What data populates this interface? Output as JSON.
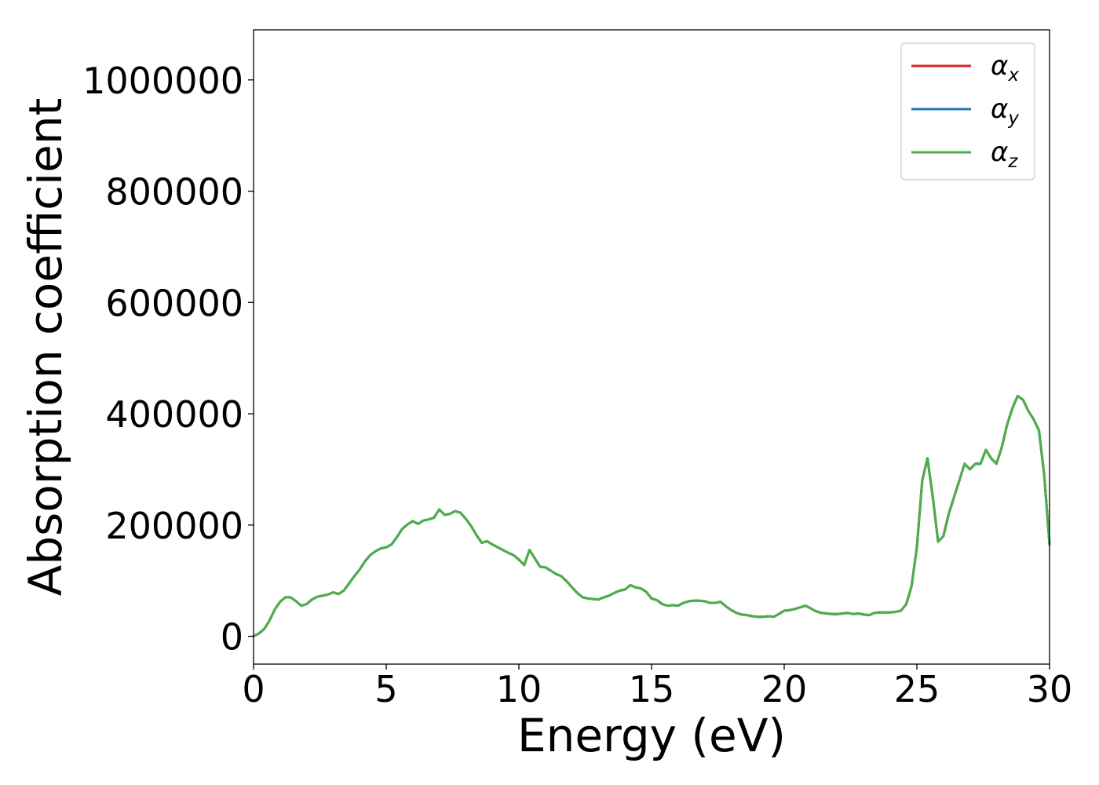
{
  "chart_data": {
    "type": "line",
    "title": "",
    "xlabel": "Energy (eV)",
    "ylabel": "Absorption coefficient",
    "xlim": [
      0,
      30
    ],
    "ylim": [
      -50000,
      1090000
    ],
    "x_ticks": [
      0,
      5,
      10,
      15,
      20,
      25,
      30
    ],
    "x_tick_labels": [
      "0",
      "5",
      "10",
      "15",
      "20",
      "25",
      "30"
    ],
    "y_ticks": [
      0,
      200000,
      400000,
      600000,
      800000,
      1000000
    ],
    "y_tick_labels": [
      "0",
      "200000",
      "400000",
      "600000",
      "800000",
      "1000000"
    ],
    "grid": false,
    "legend_position": "top-right",
    "legend": [
      {
        "symbol": "α",
        "subscript": "x",
        "color": "#d62728"
      },
      {
        "symbol": "α",
        "subscript": "y",
        "color": "#1f77b4"
      },
      {
        "symbol": "α",
        "subscript": "z",
        "color": "#4daf4a"
      }
    ],
    "x": [
      0,
      0.2,
      0.4,
      0.6,
      0.8,
      1.0,
      1.2,
      1.4,
      1.6,
      1.8,
      2.0,
      2.2,
      2.4,
      2.6,
      2.8,
      3.0,
      3.2,
      3.4,
      3.6,
      3.8,
      4.0,
      4.2,
      4.4,
      4.6,
      4.8,
      5.0,
      5.2,
      5.4,
      5.6,
      5.8,
      6.0,
      6.2,
      6.4,
      6.6,
      6.8,
      7.0,
      7.2,
      7.4,
      7.6,
      7.8,
      8.0,
      8.2,
      8.4,
      8.6,
      8.8,
      9.0,
      9.2,
      9.4,
      9.6,
      9.8,
      10.0,
      10.2,
      10.4,
      10.6,
      10.8,
      11.0,
      11.2,
      11.4,
      11.6,
      11.8,
      12.0,
      12.2,
      12.4,
      12.6,
      12.8,
      13.0,
      13.2,
      13.4,
      13.6,
      13.8,
      14.0,
      14.2,
      14.4,
      14.6,
      14.8,
      15.0,
      15.2,
      15.4,
      15.6,
      15.8,
      16.0,
      16.2,
      16.4,
      16.6,
      16.8,
      17.0,
      17.2,
      17.4,
      17.6,
      17.8,
      18.0,
      18.2,
      18.4,
      18.6,
      18.8,
      19.0,
      19.2,
      19.4,
      19.6,
      19.8,
      20.0,
      20.2,
      20.4,
      20.6,
      20.8,
      21.0,
      21.2,
      21.4,
      21.6,
      21.8,
      22.0,
      22.2,
      22.4,
      22.6,
      22.8,
      23.0,
      23.2,
      23.4,
      23.6,
      23.8,
      24.0,
      24.2,
      24.4,
      24.6,
      24.8,
      25.0,
      25.2,
      25.4,
      25.6,
      25.8,
      26.0,
      26.2,
      26.4,
      26.6,
      26.8,
      27.0,
      27.2,
      27.4,
      27.6,
      27.8,
      28.0,
      28.2,
      28.4,
      28.6,
      28.8,
      29.0,
      29.2,
      29.4,
      29.6,
      29.8,
      30.0
    ],
    "series": [
      {
        "name": "α_x",
        "values": [
          0,
          5000,
          13000,
          28000,
          48000,
          62000,
          70000,
          70000,
          63000,
          55000,
          58000,
          66000,
          71000,
          73000,
          75000,
          79000,
          76000,
          82000,
          95000,
          108000,
          120000,
          135000,
          146000,
          153000,
          158000,
          160000,
          165000,
          178000,
          193000,
          201000,
          207000,
          202000,
          208000,
          210000,
          213000,
          228000,
          218000,
          220000,
          225000,
          222000,
          211000,
          198000,
          182000,
          168000,
          171000,
          165000,
          160000,
          155000,
          150000,
          146000,
          138000,
          128000,
          155000,
          140000,
          125000,
          124000,
          118000,
          112000,
          108000,
          99000,
          88000,
          78000,
          70000,
          68000,
          67000,
          66000,
          70000,
          73000,
          78000,
          82000,
          84000,
          92000,
          88000,
          86000,
          80000,
          68000,
          65000,
          58000,
          55000,
          56000,
          55000,
          60000,
          63000,
          64000,
          64000,
          63000,
          60000,
          60000,
          62000,
          54000,
          47000,
          42000,
          39000,
          38000,
          36000,
          35000,
          35000,
          36000,
          35000,
          40000,
          46000,
          47000,
          49000,
          52000,
          55000,
          50000,
          45000,
          42000,
          41000,
          40000,
          40000,
          41000,
          42000,
          40000,
          41000,
          39000,
          38000,
          42000,
          43000,
          43000,
          43000,
          44000,
          46000,
          58000,
          90000,
          160000,
          280000,
          320000,
          250000,
          170000,
          180000,
          220000,
          250000,
          280000,
          310000,
          300000,
          310000,
          310000,
          335000,
          320000,
          310000,
          340000,
          380000,
          410000,
          432000,
          425000,
          405000,
          390000,
          370000,
          290000,
          165000
        ]
      },
      {
        "name": "α_y",
        "values": [
          0,
          5000,
          13000,
          28000,
          48000,
          62000,
          70000,
          70000,
          63000,
          55000,
          58000,
          66000,
          71000,
          73000,
          75000,
          79000,
          76000,
          82000,
          95000,
          108000,
          120000,
          135000,
          146000,
          153000,
          158000,
          160000,
          165000,
          178000,
          193000,
          201000,
          207000,
          202000,
          208000,
          210000,
          213000,
          228000,
          218000,
          220000,
          225000,
          222000,
          211000,
          198000,
          182000,
          168000,
          171000,
          165000,
          160000,
          155000,
          150000,
          146000,
          138000,
          128000,
          155000,
          140000,
          125000,
          124000,
          118000,
          112000,
          108000,
          99000,
          88000,
          78000,
          70000,
          68000,
          67000,
          66000,
          70000,
          73000,
          78000,
          82000,
          84000,
          92000,
          88000,
          86000,
          80000,
          68000,
          65000,
          58000,
          55000,
          56000,
          55000,
          60000,
          63000,
          64000,
          64000,
          63000,
          60000,
          60000,
          62000,
          54000,
          47000,
          42000,
          39000,
          38000,
          36000,
          35000,
          35000,
          36000,
          35000,
          40000,
          46000,
          47000,
          49000,
          52000,
          55000,
          50000,
          45000,
          42000,
          41000,
          40000,
          40000,
          41000,
          42000,
          40000,
          41000,
          39000,
          38000,
          42000,
          43000,
          43000,
          43000,
          44000,
          46000,
          58000,
          90000,
          160000,
          280000,
          320000,
          250000,
          170000,
          180000,
          220000,
          250000,
          280000,
          310000,
          300000,
          310000,
          310000,
          335000,
          320000,
          310000,
          340000,
          380000,
          410000,
          432000,
          425000,
          405000,
          390000,
          370000,
          290000,
          165000
        ]
      },
      {
        "name": "α_z",
        "values": [
          0,
          5000,
          13000,
          28000,
          48000,
          62000,
          70000,
          70000,
          63000,
          55000,
          58000,
          66000,
          71000,
          73000,
          75000,
          79000,
          76000,
          82000,
          95000,
          108000,
          120000,
          135000,
          146000,
          153000,
          158000,
          160000,
          165000,
          178000,
          193000,
          201000,
          207000,
          202000,
          208000,
          210000,
          213000,
          228000,
          218000,
          220000,
          225000,
          222000,
          211000,
          198000,
          182000,
          168000,
          171000,
          165000,
          160000,
          155000,
          150000,
          146000,
          138000,
          128000,
          155000,
          140000,
          125000,
          124000,
          118000,
          112000,
          108000,
          99000,
          88000,
          78000,
          70000,
          68000,
          67000,
          66000,
          70000,
          73000,
          78000,
          82000,
          84000,
          92000,
          88000,
          86000,
          80000,
          68000,
          65000,
          58000,
          55000,
          56000,
          55000,
          60000,
          63000,
          64000,
          64000,
          63000,
          60000,
          60000,
          62000,
          54000,
          47000,
          42000,
          39000,
          38000,
          36000,
          35000,
          35000,
          36000,
          35000,
          40000,
          46000,
          47000,
          49000,
          52000,
          55000,
          50000,
          45000,
          42000,
          41000,
          40000,
          40000,
          41000,
          42000,
          40000,
          41000,
          39000,
          38000,
          42000,
          43000,
          43000,
          43000,
          44000,
          46000,
          58000,
          90000,
          160000,
          280000,
          320000,
          250000,
          170000,
          180000,
          220000,
          250000,
          280000,
          310000,
          300000,
          310000,
          310000,
          335000,
          320000,
          310000,
          340000,
          380000,
          410000,
          432000,
          425000,
          405000,
          390000,
          370000,
          290000,
          165000
        ]
      }
    ]
  }
}
